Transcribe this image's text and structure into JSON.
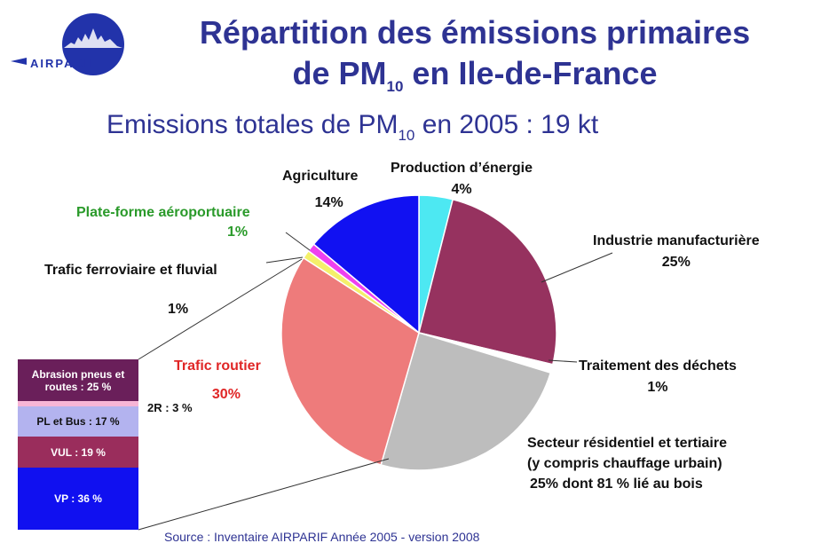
{
  "header": {
    "title_line1": "Répartition des émissions primaires",
    "title_line2_a": "de PM",
    "title_line2_sub": "10",
    "title_line2_b": " en Ile-de-France",
    "subtitle_a": "Emissions totales de PM",
    "subtitle_sub": "10",
    "subtitle_b": " en 2005 : 19 kt",
    "logo_text": "AIRPARIF"
  },
  "source": "Source : Inventaire AIRPARIF Année 2005 - version 2008",
  "colors": {
    "title": "#2e3393",
    "production_energie": "#4de8f2",
    "industrie": "#96325f",
    "traitement_dechets": "#ffffff",
    "residentiel": "#bdbdbd",
    "trafic_routier": "#ee7b7b",
    "trafic_ferroviaire": "#f4f06a",
    "plate_forme": "#ee40f0",
    "agriculture": "#1111f2"
  },
  "chart_data": {
    "type": "pie",
    "title": "Emissions totales de PM10 en 2005 : 19 kt",
    "slices": [
      {
        "name": "Production d’énergie",
        "value": 4,
        "label": "4%"
      },
      {
        "name": "Industrie manufacturière",
        "value": 25,
        "label": "25%"
      },
      {
        "name": "Traitement des déchets",
        "value": 1,
        "label": "1%"
      },
      {
        "name": "Secteur résidentiel et tertiaire",
        "value": 25,
        "label": "25% dont 81 % lié au bois"
      },
      {
        "name": "Trafic routier",
        "value": 30,
        "label": "30%"
      },
      {
        "name": "Trafic ferroviaire et fluvial",
        "value": 1,
        "label": "1%"
      },
      {
        "name": "Plate-forme aéroportuaire",
        "value": 1,
        "label": "1%"
      },
      {
        "name": "Agriculture",
        "value": 14,
        "label": "14%"
      }
    ],
    "breakdown_of": "Trafic routier",
    "breakdown": [
      {
        "name": "Abrasion pneus et routes",
        "value": 25,
        "label": "Abrasion pneus et routes : 25 %",
        "color": "#6a1f5a"
      },
      {
        "name": "2R",
        "value": 3,
        "label": "2R : 3 %",
        "color": "#f7b5d6"
      },
      {
        "name": "PL et Bus",
        "value": 17,
        "label": "PL et Bus : 17 %",
        "color": "#b3b3ef"
      },
      {
        "name": "VUL",
        "value": 19,
        "label": "VUL : 19 %",
        "color": "#9a2d5c"
      },
      {
        "name": "VP",
        "value": 36,
        "label": "VP : 36 %",
        "color": "#1010f0"
      }
    ]
  },
  "labels": {
    "agriculture_name": "Agriculture",
    "agriculture_pct": "14%",
    "prod_name": "Production d’énergie",
    "prod_pct": "4%",
    "industrie_name": "Industrie manufacturière",
    "industrie_pct": "25%",
    "dechets_name": "Traitement des déchets",
    "dechets_pct": "1%",
    "resid_line1": "Secteur résidentiel et tertiaire",
    "resid_line2": "(y compris chauffage urbain)",
    "resid_line3": "25% dont 81 % lié au bois",
    "routier_name": "Trafic routier",
    "routier_pct": "30%",
    "ferro_name": "Trafic ferroviaire et fluvial",
    "ferro_pct": "1%",
    "aero_name": "Plate-forme aéroportuaire",
    "aero_pct": "1%",
    "stack_abrasion": "Abrasion pneus et routes : 25 %",
    "stack_2r": "2R : 3 %",
    "stack_pl": "PL et Bus : 17 %",
    "stack_vul": "VUL : 19 %",
    "stack_vp": "VP : 36 %"
  }
}
